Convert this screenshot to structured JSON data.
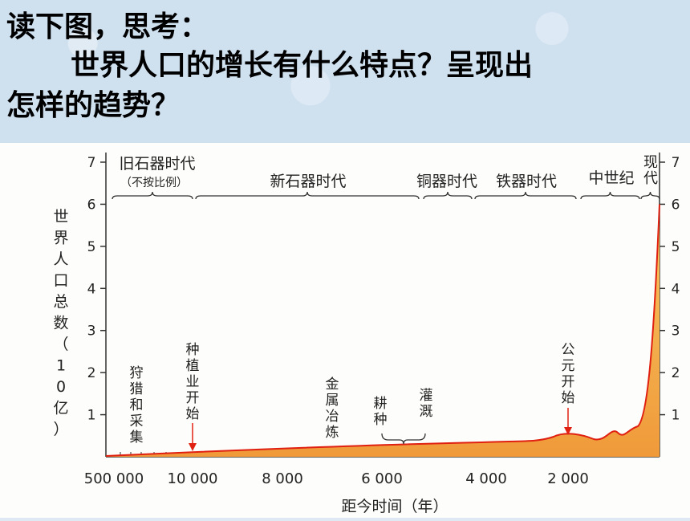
{
  "question": {
    "line1": "读下图，思考：",
    "line2": "世界人口的增长有什么特点？呈现出",
    "line3": "怎样的趋势？"
  },
  "chart_data": {
    "type": "area",
    "xlabel": "距今时间（年）",
    "ylabel": "世界人口总数（10亿）",
    "ylim": [
      0,
      7
    ],
    "y_ticks": [
      1,
      2,
      3,
      4,
      5,
      6,
      7
    ],
    "x_tick_labels": [
      "500 000",
      "10 000",
      "8 000",
      "6 000",
      "4 000",
      "2 000"
    ],
    "x_not_to_scale_note": "（不按比例）",
    "eras": [
      "旧石器时代",
      "新石器时代",
      "铜器时代",
      "铁器时代",
      "中世纪",
      "现代"
    ],
    "annotations": [
      "狩猎和采集",
      "种植业开始",
      "金属冶炼",
      "耕种",
      "灌溉",
      "公元开始"
    ],
    "series": [
      {
        "x": [
          "500 000",
          "10 000",
          "8 000",
          "6 000",
          "4 000",
          "2 000",
          "1 000",
          "0"
        ],
        "values": [
          0.0,
          0.01,
          0.05,
          0.1,
          0.2,
          0.3,
          0.4,
          6.0
        ]
      }
    ],
    "colors": {
      "fill_top": "#f7c560",
      "fill_bottom": "#f09a3a",
      "line": "#e02010",
      "arrow": "#e02010"
    },
    "grid": false
  }
}
